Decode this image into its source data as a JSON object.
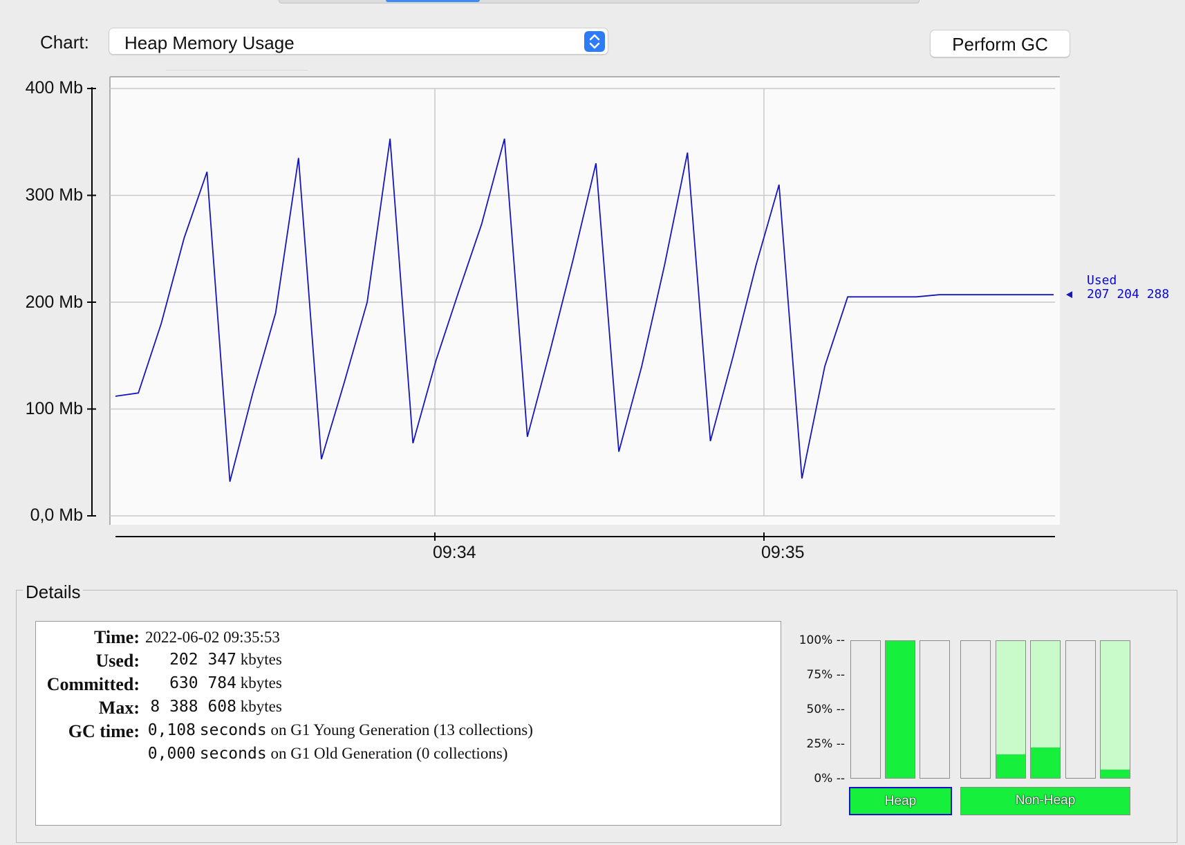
{
  "header": {
    "chart_label": "Chart:",
    "chart_select_value": "Heap Memory Usage",
    "perform_gc": "Perform GC"
  },
  "chart_data": {
    "type": "line",
    "y_tick_labels": [
      "400 Mb",
      "300 Mb",
      "200 Mb",
      "100 Mb",
      "0,0 Mb"
    ],
    "x_tick_labels": [
      "09:34",
      "09:35"
    ],
    "ylim": [
      0,
      400
    ],
    "grid": true,
    "line_color": "#1515b8",
    "series": [
      {
        "name": "Used",
        "time_labels_sec": [
          "09:33:10",
          "09:33:14",
          "09:33:18",
          "09:33:22",
          "09:33:26",
          "09:33:30",
          "09:33:34",
          "09:33:38",
          "09:33:42",
          "09:33:46",
          "09:33:50",
          "09:33:54",
          "09:33:58",
          "09:34:02",
          "09:34:06",
          "09:34:10",
          "09:34:14",
          "09:34:18",
          "09:34:22",
          "09:34:26",
          "09:34:30",
          "09:34:34",
          "09:34:38",
          "09:34:42",
          "09:34:46",
          "09:34:50",
          "09:34:54",
          "09:34:58",
          "09:35:02",
          "09:35:06",
          "09:35:10",
          "09:35:14",
          "09:35:18",
          "09:35:22",
          "09:35:26",
          "09:35:30",
          "09:35:34",
          "09:35:38",
          "09:35:42",
          "09:35:46",
          "09:35:50",
          "09:35:54"
        ],
        "values": [
          112,
          115,
          180,
          260,
          322,
          32,
          115,
          190,
          335,
          53,
          125,
          200,
          353,
          68,
          145,
          210,
          273,
          353,
          74,
          155,
          240,
          330,
          60,
          140,
          235,
          340,
          70,
          150,
          235,
          310,
          35,
          140,
          205,
          205,
          205,
          205,
          207,
          207,
          207,
          207,
          207,
          207
        ]
      }
    ],
    "current_label": "Used",
    "current_value": "207 204 288"
  },
  "details": {
    "title": "Details",
    "time_key": "Time:",
    "time_val": "2022-06-02 09:35:53",
    "used_key": "Used:",
    "used_num": "202 347",
    "used_unit": "kbytes",
    "committed_key": "Committed:",
    "committed_num": "630 784",
    "committed_unit": "kbytes",
    "max_key": "Max:",
    "max_num": "8 388 608",
    "max_unit": "kbytes",
    "gc_key": "GC time:",
    "gc1_num": "0,108",
    "gc1_unit": "seconds",
    "gc1_text": "on G1 Young Generation (13 collections)",
    "gc2_num": "0,000",
    "gc2_unit": "seconds",
    "gc2_text": "on G1 Old Generation (0 collections)"
  },
  "pools": {
    "pct_labels": [
      "100% --",
      "75% --",
      "50% --",
      "25% --",
      "0% --"
    ],
    "heap_bars": [
      0,
      100,
      0
    ],
    "nonheap_bars": [
      0,
      17,
      22,
      0,
      6
    ],
    "heap_label": "Heap",
    "nonheap_label": "Non-Heap"
  }
}
